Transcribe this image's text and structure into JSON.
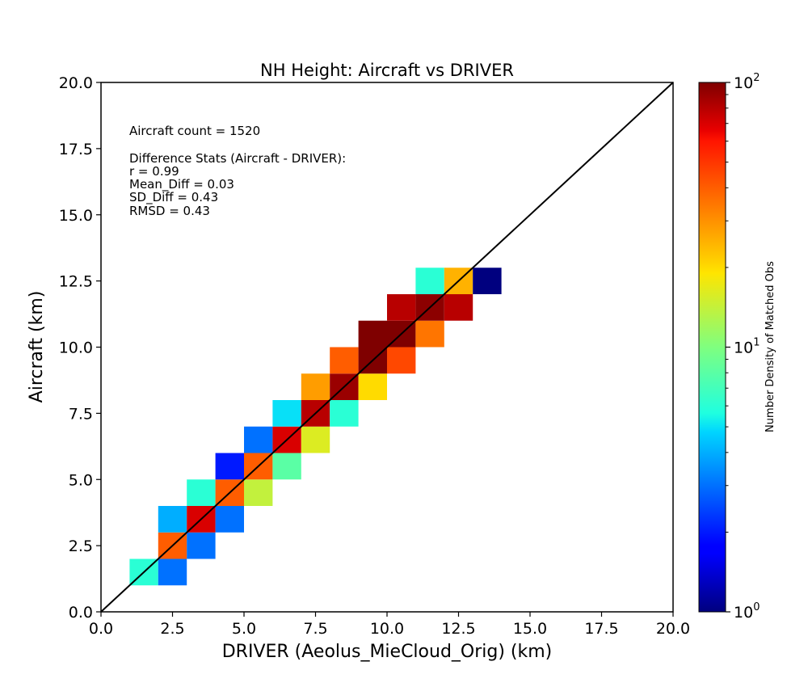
{
  "chart_data": {
    "type": "heatmap",
    "title": "NH Height: Aircraft vs DRIVER",
    "xlabel": "DRIVER (Aeolus_MieCloud_Orig) (km)",
    "ylabel": "Aircraft (km)",
    "xlim": [
      0,
      20
    ],
    "ylim": [
      0,
      20
    ],
    "x_ticks": [
      "0.0",
      "2.5",
      "5.0",
      "7.5",
      "10.0",
      "12.5",
      "15.0",
      "17.5",
      "20.0"
    ],
    "y_ticks": [
      "0.0",
      "2.5",
      "5.0",
      "7.5",
      "10.0",
      "12.5",
      "15.0",
      "17.5",
      "20.0"
    ],
    "bin_size_km": 1,
    "one_to_one_line": true,
    "colorbar": {
      "label": "Number Density of Matched Obs",
      "scale": "log",
      "range": [
        1,
        100
      ],
      "colormap": "jet",
      "ticks": [
        {
          "value": 1,
          "base": "10",
          "exp": "0"
        },
        {
          "value": 10,
          "base": "10",
          "exp": "1"
        },
        {
          "value": 100,
          "base": "10",
          "exp": "2"
        }
      ]
    },
    "annotations": {
      "count": "Aircraft count = 1520",
      "header": "Difference Stats (Aircraft - DRIVER):",
      "r": "r = 0.99",
      "mean_diff": "Mean_Diff = 0.03",
      "sd_diff": "SD_Diff = 0.43",
      "rmsd": "RMSD = 0.43"
    },
    "cells": [
      {
        "x": 1,
        "y": 1,
        "count": 6
      },
      {
        "x": 2,
        "y": 1,
        "count": 3
      },
      {
        "x": 2,
        "y": 2,
        "count": 40
      },
      {
        "x": 3,
        "y": 2,
        "count": 3
      },
      {
        "x": 2,
        "y": 3,
        "count": 4
      },
      {
        "x": 3,
        "y": 3,
        "count": 70
      },
      {
        "x": 4,
        "y": 3,
        "count": 3
      },
      {
        "x": 3,
        "y": 4,
        "count": 6
      },
      {
        "x": 4,
        "y": 4,
        "count": 40
      },
      {
        "x": 5,
        "y": 4,
        "count": 14
      },
      {
        "x": 4,
        "y": 5,
        "count": 2
      },
      {
        "x": 5,
        "y": 5,
        "count": 40
      },
      {
        "x": 6,
        "y": 5,
        "count": 8
      },
      {
        "x": 5,
        "y": 6,
        "count": 3
      },
      {
        "x": 6,
        "y": 6,
        "count": 70
      },
      {
        "x": 7,
        "y": 6,
        "count": 16
      },
      {
        "x": 6,
        "y": 7,
        "count": 5
      },
      {
        "x": 7,
        "y": 7,
        "count": 80
      },
      {
        "x": 8,
        "y": 7,
        "count": 6
      },
      {
        "x": 7,
        "y": 8,
        "count": 28
      },
      {
        "x": 8,
        "y": 8,
        "count": 90
      },
      {
        "x": 9,
        "y": 8,
        "count": 20
      },
      {
        "x": 8,
        "y": 9,
        "count": 40
      },
      {
        "x": 9,
        "y": 9,
        "count": 100
      },
      {
        "x": 10,
        "y": 9,
        "count": 45
      },
      {
        "x": 9,
        "y": 10,
        "count": 100
      },
      {
        "x": 10,
        "y": 10,
        "count": 100
      },
      {
        "x": 11,
        "y": 10,
        "count": 35
      },
      {
        "x": 10,
        "y": 11,
        "count": 80
      },
      {
        "x": 11,
        "y": 11,
        "count": 95
      },
      {
        "x": 12,
        "y": 11,
        "count": 80
      },
      {
        "x": 11,
        "y": 12,
        "count": 6
      },
      {
        "x": 12,
        "y": 12,
        "count": 25
      },
      {
        "x": 13,
        "y": 12,
        "count": 1
      }
    ]
  }
}
